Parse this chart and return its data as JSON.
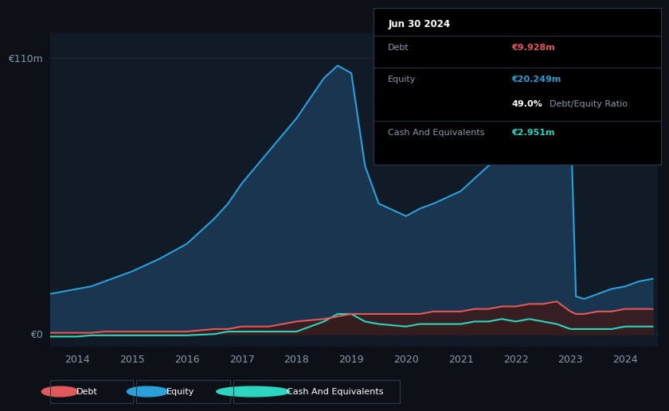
{
  "bg_color": "#0d1117",
  "plot_bg_color": "#111a27",
  "grid_color": "#1e2a3a",
  "ylabel_color": "#8899aa",
  "xlabel_color": "#8899aa",
  "ylim_max": 120,
  "equity_color": "#2b9fd8",
  "equity_fill": "#1a3550",
  "debt_color": "#e05a5a",
  "debt_fill": "#3d1a1a",
  "cash_color": "#2dd4bf",
  "cash_fill": "#0d2e2a",
  "years": [
    2013.5,
    2014.0,
    2014.25,
    2014.5,
    2015.0,
    2015.5,
    2016.0,
    2016.5,
    2016.75,
    2017.0,
    2017.5,
    2018.0,
    2018.5,
    2018.75,
    2019.0,
    2019.25,
    2019.5,
    2020.0,
    2020.25,
    2020.5,
    2021.0,
    2021.25,
    2021.5,
    2021.75,
    2022.0,
    2022.25,
    2022.5,
    2022.75,
    2023.0,
    2023.1,
    2023.25,
    2023.5,
    2023.75,
    2024.0,
    2024.25,
    2024.5
  ],
  "equity": [
    16,
    18,
    19,
    21,
    25,
    30,
    36,
    46,
    52,
    60,
    73,
    86,
    102,
    107,
    104,
    67,
    52,
    47,
    50,
    52,
    57,
    62,
    67,
    70,
    76,
    82,
    88,
    94,
    88,
    15,
    14,
    16,
    18,
    19,
    21,
    22
  ],
  "debt": [
    0.5,
    0.5,
    0.5,
    1,
    1,
    1,
    1,
    2,
    2,
    3,
    3,
    5,
    6,
    7,
    8,
    8,
    8,
    8,
    8,
    9,
    9,
    10,
    10,
    11,
    11,
    12,
    12,
    13,
    9,
    8,
    8,
    9,
    9,
    10,
    10,
    10
  ],
  "cash": [
    -1,
    -1,
    -0.5,
    -0.5,
    -0.5,
    -0.5,
    -0.5,
    0,
    1,
    1,
    1,
    1,
    5,
    8,
    8,
    5,
    4,
    3,
    4,
    4,
    4,
    5,
    5,
    6,
    5,
    6,
    5,
    4,
    2,
    2,
    2,
    2,
    2,
    3,
    3,
    3
  ],
  "xlabel_years": [
    "2014",
    "2015",
    "2016",
    "2017",
    "2018",
    "2019",
    "2020",
    "2021",
    "2022",
    "2023",
    "2024"
  ],
  "xtick_positions": [
    2014,
    2015,
    2016,
    2017,
    2018,
    2019,
    2020,
    2021,
    2022,
    2023,
    2024
  ],
  "ytick_label": "€110m",
  "y0_label": "€0",
  "tooltip_title": "Jun 30 2024",
  "tooltip_debt_label": "Debt",
  "tooltip_debt_value": "€9.928m",
  "tooltip_equity_label": "Equity",
  "tooltip_equity_value": "€20.249m",
  "tooltip_ratio": "49.0%",
  "tooltip_ratio_text": "Debt/Equity Ratio",
  "tooltip_cash_label": "Cash And Equivalents",
  "tooltip_cash_value": "€2.951m",
  "legend_debt": "Debt",
  "legend_equity": "Equity",
  "legend_cash": "Cash And Equivalents"
}
